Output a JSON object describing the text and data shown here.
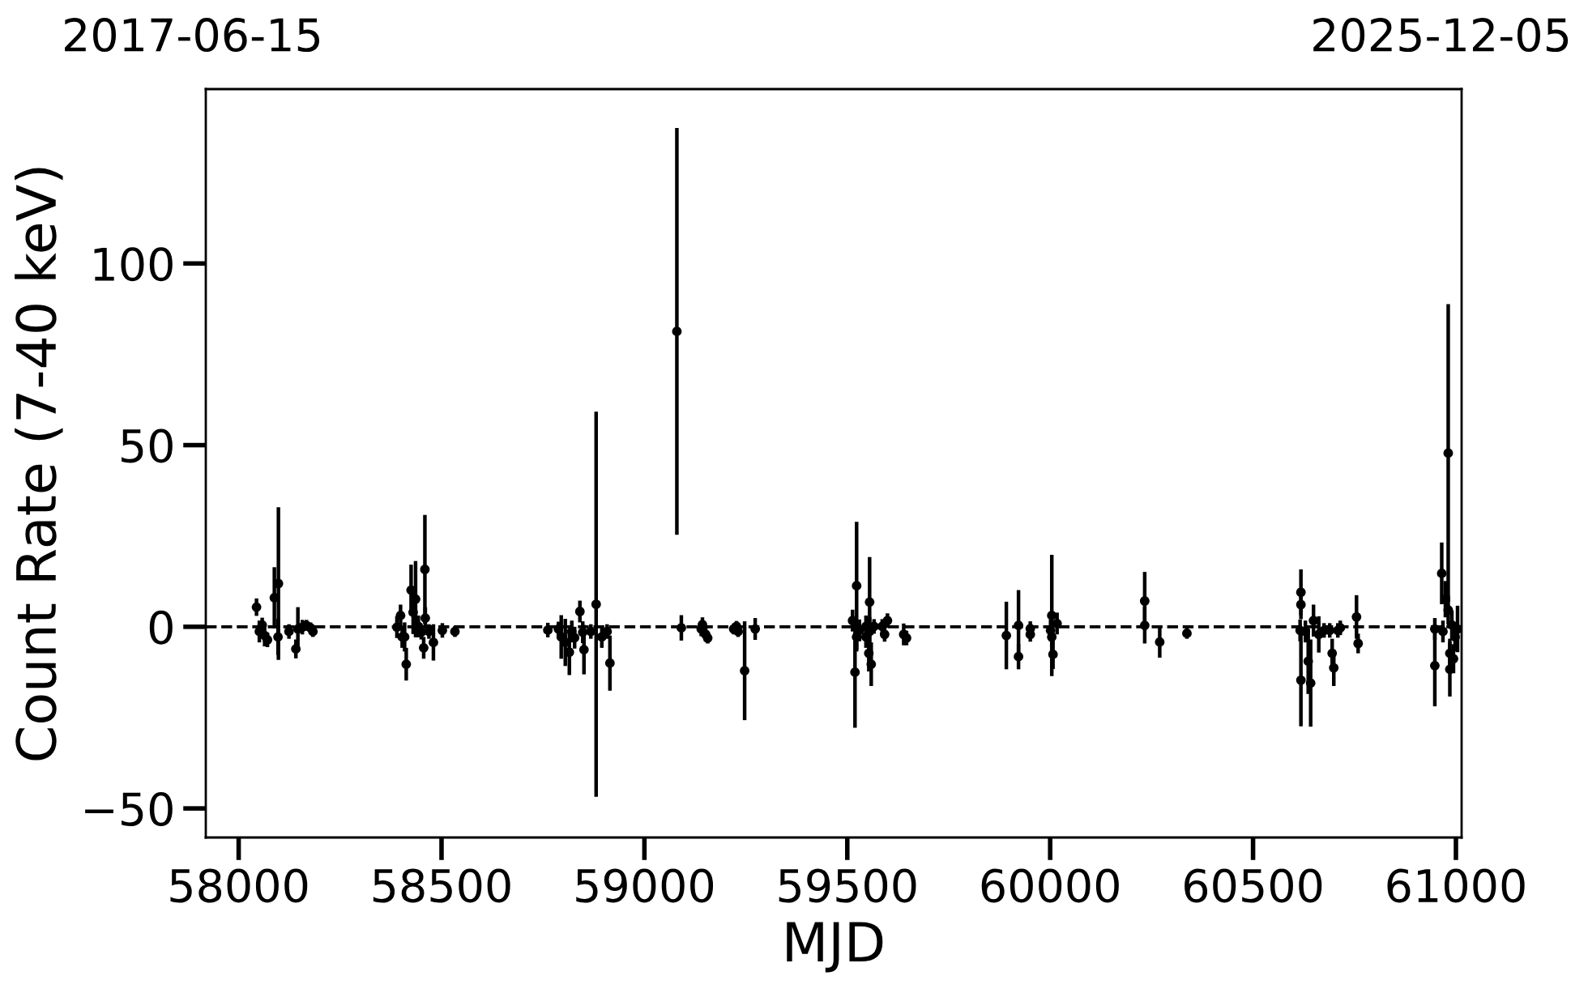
{
  "chart_data": {
    "type": "scatter",
    "xlabel": "MJD",
    "ylabel": "Count Rate (7-40 keV)",
    "annotations": [
      "2017-06-15",
      "2025-12-05"
    ],
    "marker": "circle",
    "xlim": [
      57919,
      61014
    ],
    "ylim": [
      -58,
      148
    ],
    "xticks": [
      58000,
      58500,
      59000,
      59500,
      60000,
      60500,
      61000
    ],
    "yticks": [
      {
        "value": -50,
        "label": "−50"
      },
      0,
      50,
      100
    ],
    "ref_lines": [
      {
        "axis": "y",
        "value": 0,
        "color": "#000000",
        "line_style": "dashed"
      }
    ],
    "x": [
      58044,
      58051,
      58058,
      58064,
      58071,
      58088,
      58098,
      58097,
      58124,
      58141,
      58146,
      58157,
      58167,
      58177,
      58183,
      58390,
      58399,
      58403,
      58409,
      58413,
      58425,
      58430,
      58436,
      58443,
      58450,
      58456,
      58459,
      58460,
      58469,
      58480,
      58502,
      58533,
      58762,
      58788,
      58795,
      58805,
      58815,
      58821,
      58828,
      58841,
      58848,
      58851,
      58868,
      58881,
      58895,
      58908,
      58915,
      59080,
      59091,
      59140,
      59143,
      59151,
      59156,
      59220,
      59227,
      59231,
      59247,
      59273,
      59513,
      59519,
      59523,
      59523,
      59530,
      59546,
      59546,
      59553,
      59555,
      59555,
      59559,
      59566,
      59586,
      59592,
      59599,
      59639,
      59646,
      59892,
      59922,
      59922,
      59951,
      59951,
      60001,
      60004,
      60004,
      60007,
      60017,
      60233,
      60233,
      60270,
      60337,
      60616,
      60618,
      60618,
      60618,
      60629,
      60636,
      60642,
      60649,
      60662,
      60675,
      60689,
      60695,
      60699,
      60709,
      60715,
      60755,
      60759,
      60948,
      60948,
      60965,
      60968,
      60974,
      60981,
      60981,
      60985,
      60985,
      60990,
      60994,
      60998,
      61004
    ],
    "series": [
      {
        "color": "#000000",
        "values": [
          5.4,
          -1.3,
          0.5,
          -2.4,
          -3.6,
          8.0,
          11.9,
          -2.8,
          -1.3,
          -6.1,
          -0.6,
          -0.1,
          0.4,
          -0.3,
          -1.3,
          -0.1,
          3.1,
          -2.8,
          -2.8,
          -10.3,
          10.1,
          4.0,
          7.6,
          0.1,
          -1.5,
          -5.8,
          15.8,
          2.4,
          -1.3,
          -4.3,
          -1.0,
          -1.3,
          -0.9,
          -0.6,
          -2.8,
          -4.3,
          -7.0,
          -1.3,
          -3.0,
          4.2,
          -1.5,
          -6.3,
          -1.3,
          6.2,
          -2.8,
          -1.3,
          -10.0,
          81.3,
          -0.3,
          -0.6,
          0.6,
          -2.1,
          -3.1,
          -0.6,
          0.1,
          -1.3,
          -12.1,
          -0.6,
          1.7,
          -12.5,
          11.3,
          -2.8,
          -1.0,
          0.1,
          -2.8,
          -7.3,
          6.8,
          -1.3,
          -10.3,
          0.1,
          0.1,
          -2.1,
          1.7,
          -2.1,
          -3.1,
          -2.4,
          0.4,
          -8.2,
          -2.1,
          -0.5,
          -1.0,
          3.1,
          -2.8,
          -7.6,
          0.9,
          7.1,
          0.4,
          -4.2,
          -1.8,
          -1.0,
          9.5,
          6.1,
          -14.7,
          -1.3,
          -9.5,
          -15.5,
          1.7,
          -2.1,
          -1.0,
          -1.0,
          -7.3,
          -11.3,
          -1.0,
          -0.3,
          2.7,
          -4.6,
          -10.7,
          -0.6,
          14.7,
          -1.3,
          7.6,
          47.8,
          4.6,
          -7.3,
          -11.7,
          0.5,
          -8.8,
          -2.8,
          -0.6
        ],
        "errors": [
          2.4,
          3,
          2,
          3,
          2,
          8.4,
          21,
          5,
          2,
          2.6,
          6,
          2,
          1.5,
          1.5,
          1.5,
          3,
          3,
          3,
          4,
          4.5,
          7,
          6,
          10.5,
          3,
          2,
          3,
          15,
          3,
          2,
          5,
          2,
          1.5,
          2,
          2,
          6,
          6.5,
          6.3,
          3,
          3,
          3,
          3,
          6.8,
          2,
          53,
          3,
          2,
          7.6,
          56,
          3.5,
          2,
          2,
          2,
          1.5,
          1.5,
          1.5,
          1.5,
          13.6,
          3,
          3,
          15.3,
          17.6,
          4,
          3,
          3,
          3,
          5,
          12.4,
          4,
          6,
          2,
          2,
          2,
          2,
          3,
          2,
          9.3,
          9.7,
          3.5,
          2,
          2,
          3,
          16.7,
          3,
          4,
          3,
          8,
          5,
          4.3,
          1.5,
          3,
          6.3,
          4,
          12.7,
          3,
          9,
          12,
          4.4,
          5,
          2,
          2,
          4,
          5,
          2,
          2,
          6,
          2.7,
          11.2,
          3,
          8.5,
          3,
          5,
          41,
          4,
          4,
          7.5,
          4,
          4,
          4,
          6.4
        ]
      }
    ]
  }
}
